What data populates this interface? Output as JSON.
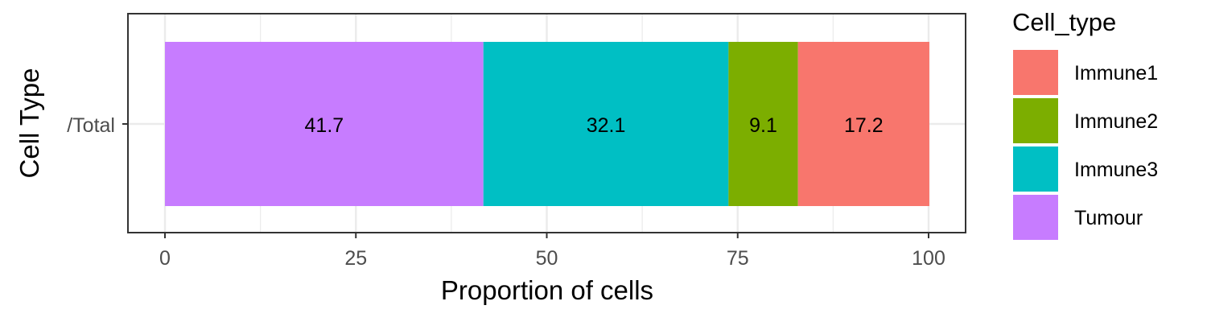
{
  "chart_data": {
    "type": "bar",
    "orientation": "horizontal",
    "stacked": true,
    "categories": [
      "/Total"
    ],
    "series": [
      {
        "name": "Tumour",
        "values": [
          41.7
        ],
        "label": "41.7",
        "color": "#C77CFF"
      },
      {
        "name": "Immune3",
        "values": [
          32.1
        ],
        "label": "32.1",
        "color": "#00BFC4"
      },
      {
        "name": "Immune2",
        "values": [
          9.1
        ],
        "label": "9.1",
        "color": "#7CAE00"
      },
      {
        "name": "Immune1",
        "values": [
          17.2
        ],
        "label": "17.2",
        "color": "#F8766D"
      }
    ],
    "xlabel": "Proportion of cells",
    "ylabel": "Cell Type",
    "xlim": [
      0,
      100
    ],
    "xticks": [
      0,
      25,
      50,
      75,
      100
    ],
    "xtick_labels": [
      "0",
      "25",
      "50",
      "75",
      "100"
    ],
    "grid": true,
    "legend": {
      "title": "Cell_type",
      "placement": "right",
      "entries": [
        {
          "label": "Immune1",
          "color": "#F8766D"
        },
        {
          "label": "Immune2",
          "color": "#7CAE00"
        },
        {
          "label": "Immune3",
          "color": "#00BFC4"
        },
        {
          "label": "Tumour",
          "color": "#C77CFF"
        }
      ]
    }
  }
}
